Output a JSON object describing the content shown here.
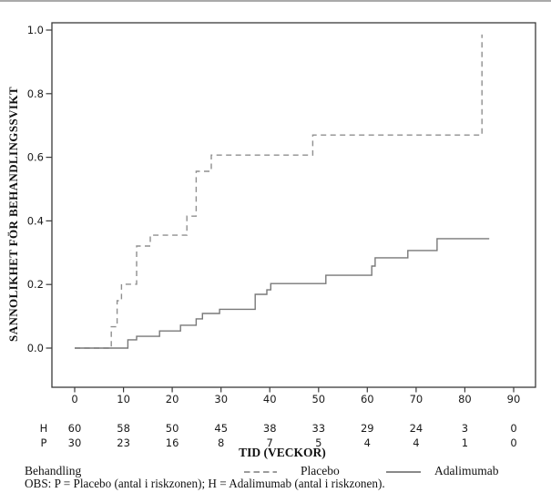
{
  "figure": {
    "y_axis_title": "SANNOLIKHET FÖR BEHANDLINGSSVIKT",
    "x_axis_title": "TID (VECKOR)"
  },
  "legend": {
    "title": "Behandling",
    "items": [
      {
        "label": "Placebo",
        "style": "dashed"
      },
      {
        "label": "Adalimumab",
        "style": "solid"
      }
    ]
  },
  "note": "OBS: P = Placebo (antal i riskzonen); H = Adalimumab (antal i riskzonen).",
  "risk_table": {
    "rows": [
      {
        "label": "H",
        "values": [
          "60",
          "58",
          "50",
          "45",
          "38",
          "33",
          "29",
          "24",
          "3",
          "0"
        ]
      },
      {
        "label": "P",
        "values": [
          "30",
          "23",
          "16",
          "8",
          "7",
          "5",
          "4",
          "4",
          "1",
          "0"
        ]
      }
    ]
  },
  "colors": {
    "placebo_line": "#8f8f8f",
    "adalimumab_line": "#787878",
    "axis": "#3a3a3a",
    "text": "#1a1a1a"
  },
  "chart_data": {
    "type": "line",
    "subtype": "kaplan-meier-step",
    "title": "",
    "xlabel": "TID (VECKOR)",
    "ylabel": "SANNOLIKHET FÖR BEHANDLINGSSVIKT",
    "xlim": [
      0,
      90
    ],
    "ylim": [
      0,
      1
    ],
    "xticks": [
      0,
      10,
      20,
      30,
      40,
      50,
      60,
      70,
      80,
      90
    ],
    "yticks": [
      "0.0",
      "0.2",
      "0.4",
      "0.6",
      "0.8",
      "1.0"
    ],
    "grid": false,
    "legend_position": "bottom",
    "series": [
      {
        "name": "Placebo",
        "line_style": "dashed",
        "steps": [
          [
            0,
            0
          ],
          [
            7.5,
            0.067
          ],
          [
            8.7,
            0.149
          ],
          [
            9.6,
            0.201
          ],
          [
            12.7,
            0.321
          ],
          [
            15.5,
            0.355
          ],
          [
            23,
            0.415
          ],
          [
            24.9,
            0.556
          ],
          [
            28,
            0.607
          ],
          [
            48.8,
            0.67
          ],
          [
            83.5,
            0.986
          ]
        ],
        "end_week": 83.5
      },
      {
        "name": "Adalimumab",
        "line_style": "solid",
        "steps": [
          [
            0,
            0
          ],
          [
            10.9,
            0.026
          ],
          [
            12.7,
            0.037
          ],
          [
            17.4,
            0.054
          ],
          [
            21.7,
            0.072
          ],
          [
            24.9,
            0.092
          ],
          [
            26.2,
            0.109
          ],
          [
            29.7,
            0.122
          ],
          [
            37,
            0.169
          ],
          [
            39.4,
            0.183
          ],
          [
            40.2,
            0.203
          ],
          [
            51.5,
            0.229
          ],
          [
            60.9,
            0.258
          ],
          [
            61.6,
            0.284
          ],
          [
            68.3,
            0.307
          ],
          [
            74.3,
            0.344
          ]
        ],
        "end_week": 85
      }
    ],
    "at_risk": {
      "weeks": [
        0,
        10,
        20,
        30,
        40,
        50,
        60,
        70,
        80,
        90
      ],
      "H_adalimumab": [
        60,
        58,
        50,
        45,
        38,
        33,
        29,
        24,
        3,
        0
      ],
      "P_placebo": [
        30,
        23,
        16,
        8,
        7,
        5,
        4,
        4,
        1,
        0
      ]
    }
  }
}
